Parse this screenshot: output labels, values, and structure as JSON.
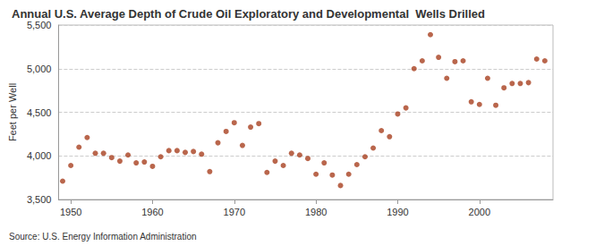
{
  "chart_data": {
    "type": "scatter",
    "title": "Annual U.S. Average Depth of Crude Oil Exploratory and Developmental  Wells Drilled",
    "y_label": "Feet per Well",
    "annotations": [
      "Source: U.S. Energy Information Administration"
    ],
    "x": [
      1949,
      1950,
      1951,
      1952,
      1953,
      1954,
      1955,
      1956,
      1957,
      1958,
      1959,
      1960,
      1961,
      1962,
      1963,
      1964,
      1965,
      1966,
      1967,
      1968,
      1969,
      1970,
      1971,
      1972,
      1973,
      1974,
      1975,
      1976,
      1977,
      1978,
      1979,
      1980,
      1981,
      1982,
      1983,
      1984,
      1985,
      1986,
      1987,
      1988,
      1989,
      1990,
      1991,
      1992,
      1993,
      1994,
      1995,
      1996,
      1997,
      1998,
      1999,
      2000,
      2001,
      2002,
      2003,
      2004,
      2005,
      2006,
      2007,
      2008
    ],
    "values": [
      3710,
      3890,
      4100,
      4210,
      4030,
      4030,
      3980,
      3940,
      4010,
      3920,
      3930,
      3880,
      3990,
      4060,
      4060,
      4040,
      4050,
      4020,
      3820,
      4150,
      4280,
      4380,
      4120,
      4330,
      4370,
      3810,
      3940,
      3890,
      4030,
      4010,
      3970,
      3790,
      3920,
      3780,
      3660,
      3790,
      3900,
      3990,
      4090,
      4290,
      4220,
      4480,
      4550,
      5000,
      5090,
      5390,
      5130,
      4890,
      5080,
      5090,
      4620,
      4590,
      4890,
      4580,
      4780,
      4830,
      4830,
      4840,
      5110,
      5090
    ],
    "color": "#a8401f",
    "marker": "circle",
    "xlim": [
      1948.5,
      2009
    ],
    "xticks": [
      1950,
      1960,
      1970,
      1980,
      1990,
      2000
    ],
    "ylim": [
      3500,
      5500
    ],
    "yticks": [
      {
        "value": 3500,
        "label": "3,500"
      },
      {
        "value": 4000,
        "label": "4,000"
      },
      {
        "value": 4500,
        "label": "4,500"
      },
      {
        "value": 5000,
        "label": "5,000"
      },
      {
        "value": 5500,
        "label": "5,500"
      }
    ],
    "grid": true
  }
}
